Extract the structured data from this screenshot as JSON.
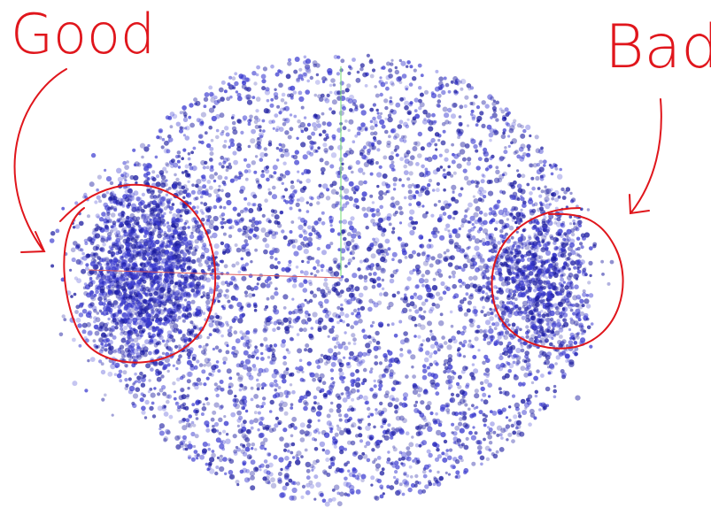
{
  "annotations": {
    "good": "Good",
    "bad": "Bad"
  }
}
